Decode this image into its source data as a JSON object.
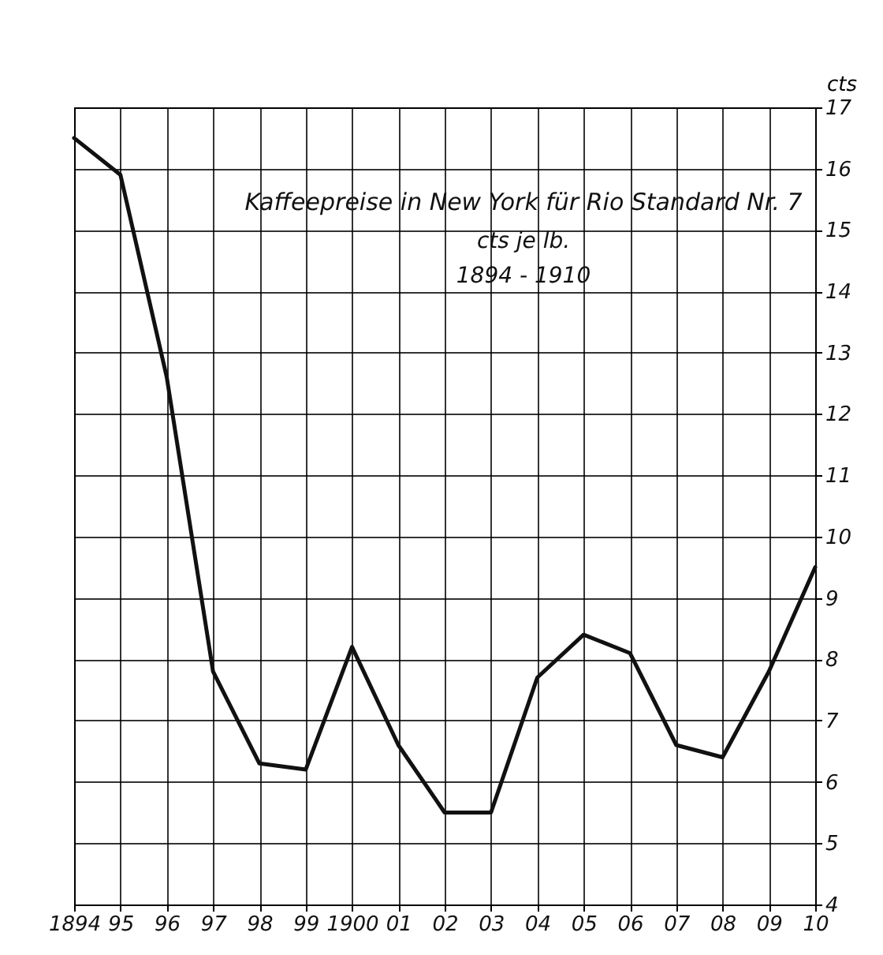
{
  "chart_data": {
    "type": "line",
    "title": "Kaffeepreise in New York für Rio Standard Nr. 7",
    "subtitle": "cts je lb.",
    "annotations": [
      "1894 - 1910"
    ],
    "ylabel": "cts",
    "categories": [
      "1894",
      "95",
      "96",
      "97",
      "98",
      "99",
      "1900",
      "01",
      "02",
      "03",
      "04",
      "05",
      "06",
      "07",
      "08",
      "09",
      "10"
    ],
    "series": [
      {
        "color": "#111111",
        "values": [
          16.5,
          15.9,
          12.6,
          7.8,
          6.3,
          6.2,
          8.2,
          6.6,
          5.5,
          5.5,
          7.7,
          8.4,
          8.1,
          6.6,
          6.4,
          7.8,
          9.5
        ]
      }
    ],
    "ylim": [
      4,
      17
    ],
    "yticks": [
      4,
      5,
      6,
      7,
      8,
      9,
      10,
      11,
      12,
      13,
      14,
      15,
      16,
      17
    ],
    "grid": true,
    "marker": "none",
    "line_style": "solid"
  }
}
